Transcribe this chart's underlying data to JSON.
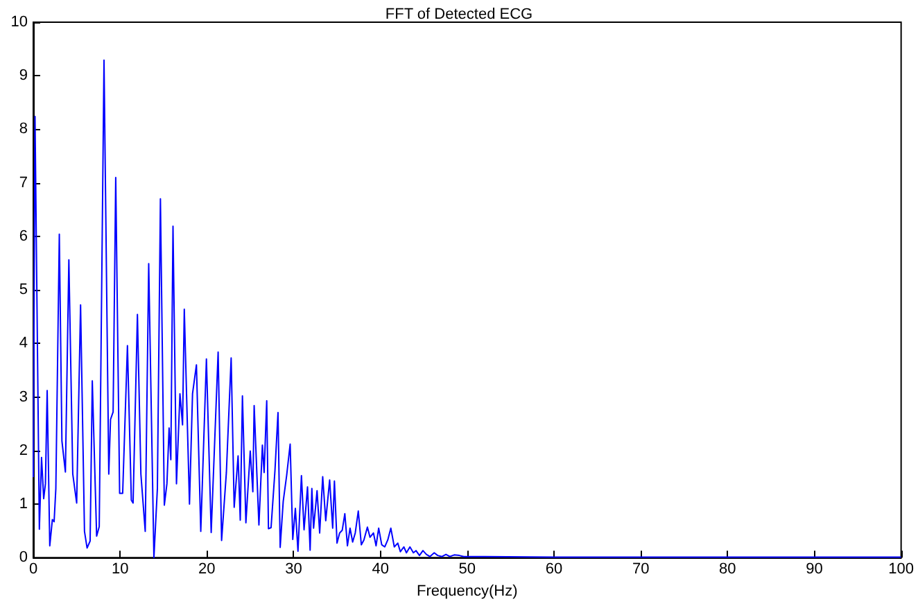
{
  "chart_data": {
    "type": "line",
    "title": "FFT of Detected ECG",
    "xlabel": "Frequency(Hz)",
    "series": [
      {
        "color": "#0000ff",
        "x": [
          0,
          0.2,
          0.7,
          0.95,
          1.2,
          1.4,
          1.6,
          1.9,
          2.2,
          2.4,
          2.6,
          3.0,
          3.3,
          3.7,
          4.1,
          4.55,
          5.0,
          5.45,
          5.9,
          6.2,
          6.55,
          6.8,
          7.3,
          7.6,
          8.15,
          8.7,
          8.9,
          9.2,
          9.5,
          9.95,
          10.3,
          10.85,
          11.3,
          11.5,
          12.0,
          12.4,
          12.9,
          13.3,
          13.9,
          14.3,
          14.65,
          15.1,
          15.4,
          15.65,
          15.85,
          16.1,
          16.5,
          16.9,
          17.2,
          17.4,
          18.0,
          18.35,
          18.8,
          19.3,
          19.95,
          20.5,
          21.3,
          21.7,
          22.25,
          22.8,
          23.15,
          23.6,
          23.85,
          24.1,
          24.5,
          25.0,
          25.3,
          25.45,
          26.0,
          26.4,
          26.6,
          26.9,
          27.1,
          27.4,
          27.85,
          28.2,
          28.45,
          28.8,
          29.2,
          29.6,
          29.9,
          30.2,
          30.5,
          30.9,
          31.2,
          31.6,
          31.9,
          32.1,
          32.3,
          32.7,
          33.0,
          33.35,
          33.7,
          34.15,
          34.5,
          34.7,
          35.0,
          35.3,
          35.6,
          35.9,
          36.2,
          36.5,
          36.8,
          37.1,
          37.45,
          37.8,
          38.1,
          38.5,
          38.8,
          39.2,
          39.5,
          39.8,
          40.15,
          40.5,
          40.85,
          41.2,
          41.6,
          42.0,
          42.3,
          42.7,
          43.0,
          43.4,
          43.8,
          44.1,
          44.5,
          44.9,
          45.3,
          45.7,
          46.2,
          46.6,
          47.1,
          47.55,
          48.0,
          48.5,
          49.1,
          49.6,
          52,
          60,
          70,
          80,
          90,
          100
        ],
        "values": [
          1.5,
          8.24,
          0.53,
          1.87,
          1.1,
          1.38,
          3.12,
          0.22,
          0.71,
          0.67,
          1.29,
          6.04,
          2.18,
          1.6,
          5.56,
          1.56,
          1.02,
          4.72,
          0.49,
          0.18,
          0.31,
          3.3,
          0.4,
          0.58,
          9.29,
          1.56,
          2.58,
          2.72,
          7.1,
          1.2,
          1.2,
          3.96,
          1.07,
          1.02,
          4.54,
          1.56,
          0.49,
          5.49,
          0.0,
          1.29,
          6.7,
          0.98,
          1.38,
          2.42,
          1.83,
          6.19,
          1.38,
          3.06,
          2.48,
          4.64,
          1.0,
          3.06,
          3.6,
          0.49,
          3.71,
          0.47,
          3.84,
          0.32,
          1.59,
          3.73,
          0.94,
          1.9,
          0.7,
          3.02,
          0.65,
          1.99,
          1.23,
          2.84,
          0.61,
          2.1,
          1.59,
          2.93,
          0.54,
          0.56,
          1.63,
          2.71,
          0.19,
          1.05,
          1.54,
          2.12,
          0.34,
          0.92,
          0.12,
          1.53,
          0.52,
          1.32,
          0.14,
          1.29,
          0.55,
          1.25,
          0.46,
          1.51,
          0.69,
          1.45,
          0.55,
          1.43,
          0.27,
          0.46,
          0.51,
          0.82,
          0.22,
          0.55,
          0.29,
          0.46,
          0.87,
          0.24,
          0.33,
          0.57,
          0.38,
          0.46,
          0.22,
          0.55,
          0.24,
          0.2,
          0.33,
          0.55,
          0.2,
          0.27,
          0.11,
          0.2,
          0.09,
          0.2,
          0.09,
          0.13,
          0.04,
          0.13,
          0.06,
          0.02,
          0.09,
          0.04,
          0.02,
          0.06,
          0.02,
          0.05,
          0.04,
          0.02,
          0.02,
          0.01,
          0.01,
          0.01,
          0.01,
          0.01
        ]
      }
    ],
    "xlim": [
      0,
      100
    ],
    "xticks": [
      0,
      10,
      20,
      30,
      40,
      50,
      60,
      70,
      80,
      90,
      100
    ],
    "ylim": [
      0,
      10
    ],
    "yticks": [
      0,
      1,
      2,
      3,
      4,
      5,
      6,
      7,
      8,
      9,
      10
    ],
    "grid": false,
    "marker": "none",
    "line_style": "solid"
  }
}
